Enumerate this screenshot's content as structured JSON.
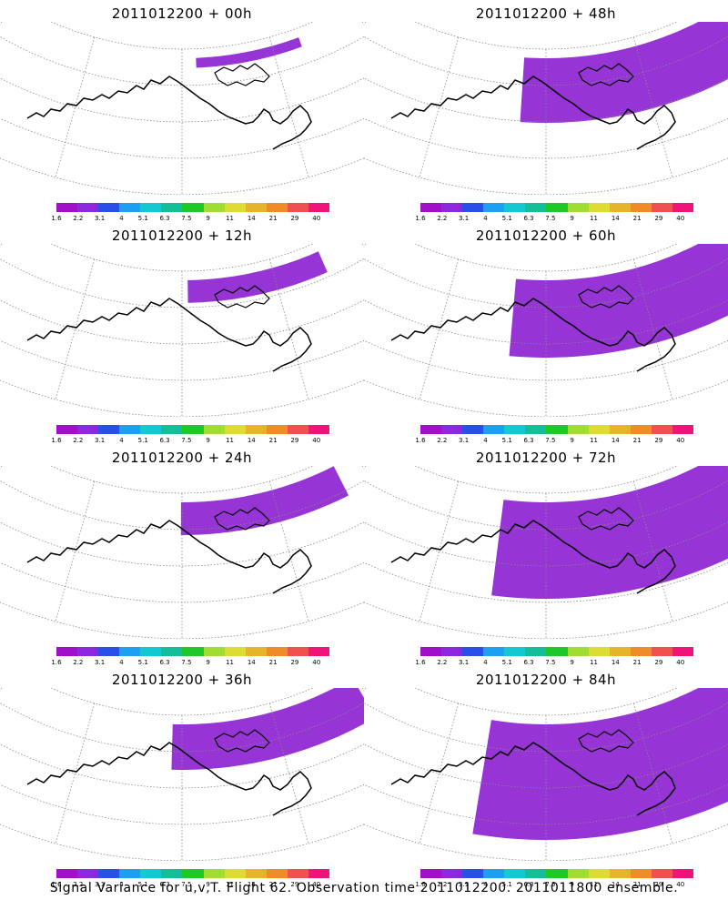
{
  "panels": [
    {
      "title": "2011012200 + 00h",
      "coverage": 0.02
    },
    {
      "title": "2011012200 + 48h",
      "coverage": 0.45
    },
    {
      "title": "2011012200 + 12h",
      "coverage": 0.12
    },
    {
      "title": "2011012200 + 60h",
      "coverage": 0.55
    },
    {
      "title": "2011012200 + 24h",
      "coverage": 0.2
    },
    {
      "title": "2011012200 + 72h",
      "coverage": 0.7
    },
    {
      "title": "2011012200 + 36h",
      "coverage": 0.3
    },
    {
      "title": "2011012200 + 84h",
      "coverage": 0.85
    }
  ],
  "colorbar": {
    "labels": [
      "1.6",
      "2.2",
      "3.1",
      "4",
      "5.1",
      "6.3",
      "7.5",
      "9",
      "11",
      "14",
      "21",
      "29",
      "40"
    ],
    "colors": [
      "#a010c8",
      "#8c28e0",
      "#2850e6",
      "#1ea0f0",
      "#14c8d2",
      "#14be96",
      "#1ec828",
      "#a0dc32",
      "#dcdc32",
      "#e6b428",
      "#f08c28",
      "#f05050",
      "#f01478"
    ]
  },
  "fill_color": "#8c1ed2",
  "caption": "Signal Variance for u,v,T. Flight 62. Observation time 2011012200. 2011011800 ensemble."
}
